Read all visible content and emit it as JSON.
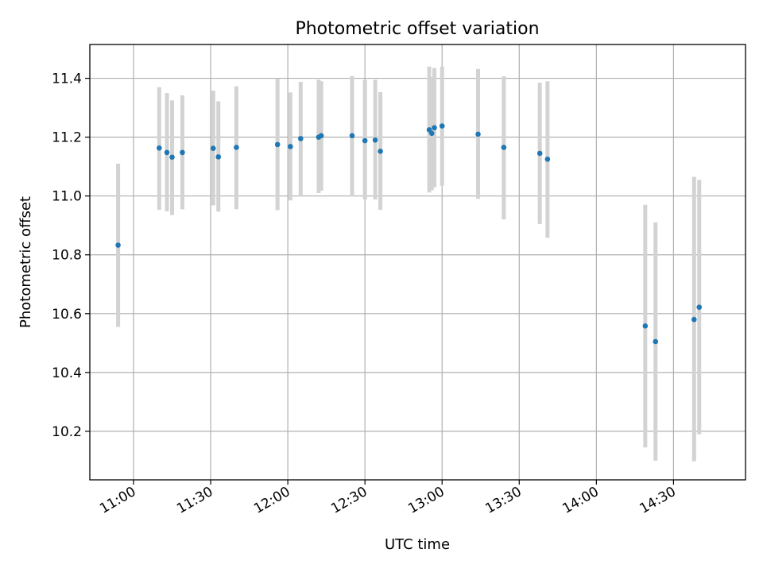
{
  "chart_data": {
    "type": "scatter",
    "title": "Photometric offset variation",
    "xlabel": "UTC time",
    "ylabel": "Photometric offset",
    "grid": true,
    "xlim": [
      "10:43",
      "14:58"
    ],
    "ylim": [
      10.035,
      11.515
    ],
    "x_ticks": [
      "11:00",
      "11:30",
      "12:00",
      "12:30",
      "13:00",
      "13:30",
      "14:00",
      "14:30"
    ],
    "y_ticks": [
      "10.2",
      "10.4",
      "10.6",
      "10.8",
      "11.0",
      "11.2",
      "11.4"
    ],
    "colors": {
      "point": "#1f77b4",
      "errorbar": "#d3d3d3",
      "grid": "#b0b0b0"
    },
    "points": [
      {
        "x": "10:54",
        "y": 10.833,
        "yerr_low": 10.555,
        "yerr_high": 11.11
      },
      {
        "x": "11:10",
        "y": 11.163,
        "yerr_low": 10.953,
        "yerr_high": 11.37
      },
      {
        "x": "11:13",
        "y": 11.148,
        "yerr_low": 10.948,
        "yerr_high": 11.35
      },
      {
        "x": "11:15",
        "y": 11.132,
        "yerr_low": 10.935,
        "yerr_high": 11.325
      },
      {
        "x": "11:19",
        "y": 11.148,
        "yerr_low": 10.955,
        "yerr_high": 11.342
      },
      {
        "x": "11:31",
        "y": 11.162,
        "yerr_low": 10.968,
        "yerr_high": 11.358
      },
      {
        "x": "11:33",
        "y": 11.133,
        "yerr_low": 10.947,
        "yerr_high": 11.322
      },
      {
        "x": "11:40",
        "y": 11.165,
        "yerr_low": 10.955,
        "yerr_high": 11.373
      },
      {
        "x": "11:56",
        "y": 11.175,
        "yerr_low": 10.952,
        "yerr_high": 11.398
      },
      {
        "x": "12:01",
        "y": 11.168,
        "yerr_low": 10.985,
        "yerr_high": 11.352
      },
      {
        "x": "12:05",
        "y": 11.195,
        "yerr_low": 11.0,
        "yerr_high": 11.388
      },
      {
        "x": "12:12",
        "y": 11.2,
        "yerr_low": 11.01,
        "yerr_high": 11.395
      },
      {
        "x": "12:13",
        "y": 11.205,
        "yerr_low": 11.018,
        "yerr_high": 11.39
      },
      {
        "x": "12:25",
        "y": 11.205,
        "yerr_low": 10.998,
        "yerr_high": 11.408
      },
      {
        "x": "12:30",
        "y": 11.188,
        "yerr_low": 10.988,
        "yerr_high": 11.395
      },
      {
        "x": "12:34",
        "y": 11.19,
        "yerr_low": 10.988,
        "yerr_high": 11.395
      },
      {
        "x": "12:36",
        "y": 11.152,
        "yerr_low": 10.953,
        "yerr_high": 11.353
      },
      {
        "x": "12:55",
        "y": 11.225,
        "yerr_low": 11.012,
        "yerr_high": 11.44
      },
      {
        "x": "12:56",
        "y": 11.213,
        "yerr_low": 11.02,
        "yerr_high": 11.405
      },
      {
        "x": "12:57",
        "y": 11.232,
        "yerr_low": 11.03,
        "yerr_high": 11.435
      },
      {
        "x": "13:00",
        "y": 11.238,
        "yerr_low": 11.035,
        "yerr_high": 11.44
      },
      {
        "x": "13:14",
        "y": 11.21,
        "yerr_low": 10.99,
        "yerr_high": 11.432
      },
      {
        "x": "13:24",
        "y": 11.165,
        "yerr_low": 10.92,
        "yerr_high": 11.407
      },
      {
        "x": "13:38",
        "y": 11.145,
        "yerr_low": 10.905,
        "yerr_high": 11.385
      },
      {
        "x": "13:41",
        "y": 11.125,
        "yerr_low": 10.858,
        "yerr_high": 11.39
      },
      {
        "x": "14:19",
        "y": 10.558,
        "yerr_low": 10.145,
        "yerr_high": 10.97
      },
      {
        "x": "14:23",
        "y": 10.505,
        "yerr_low": 10.1,
        "yerr_high": 10.91
      },
      {
        "x": "14:38",
        "y": 10.58,
        "yerr_low": 10.098,
        "yerr_high": 11.065
      },
      {
        "x": "14:40",
        "y": 10.622,
        "yerr_low": 10.19,
        "yerr_high": 11.055
      }
    ]
  }
}
